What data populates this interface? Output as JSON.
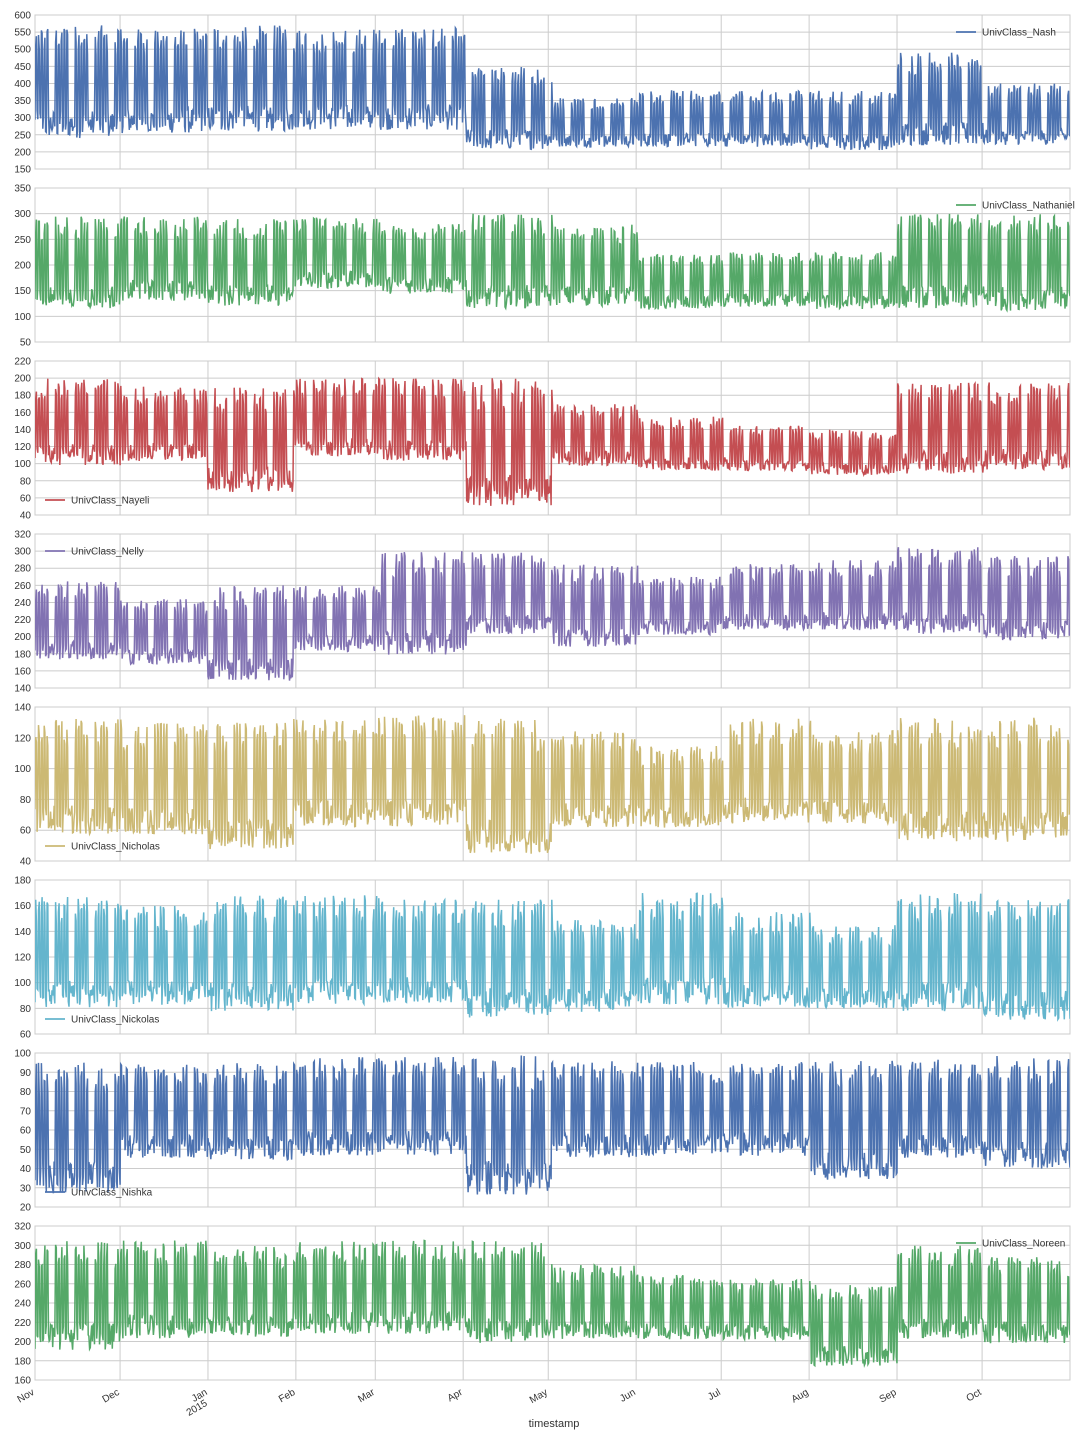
{
  "figure": {
    "background": "#ffffff",
    "grid_color": "#cccccc",
    "axes_edge_color": "#cccccc"
  },
  "chart_data": {
    "type": "line",
    "xlabel": "timestamp",
    "x_range": [
      "2014-11-01",
      "2015-10-31"
    ],
    "x_ticks": [
      {
        "date": "2014-11-01",
        "label": "Nov",
        "sublabel": ""
      },
      {
        "date": "2014-12-01",
        "label": "Dec",
        "sublabel": ""
      },
      {
        "date": "2015-01-01",
        "label": "Jan",
        "sublabel": "2015"
      },
      {
        "date": "2015-02-01",
        "label": "Feb",
        "sublabel": ""
      },
      {
        "date": "2015-03-01",
        "label": "Mar",
        "sublabel": ""
      },
      {
        "date": "2015-04-01",
        "label": "Apr",
        "sublabel": ""
      },
      {
        "date": "2015-05-01",
        "label": "May",
        "sublabel": ""
      },
      {
        "date": "2015-06-01",
        "label": "Jun",
        "sublabel": ""
      },
      {
        "date": "2015-07-01",
        "label": "Jul",
        "sublabel": ""
      },
      {
        "date": "2015-08-01",
        "label": "Aug",
        "sublabel": ""
      },
      {
        "date": "2015-09-01",
        "label": "Sep",
        "sublabel": ""
      },
      {
        "date": "2015-10-01",
        "label": "Oct",
        "sublabel": ""
      }
    ],
    "grid": true,
    "sharex": true,
    "panels": [
      {
        "name": "UnivClass_Nash",
        "color": "#4c72b0",
        "ylim": [
          150,
          600
        ],
        "yticks": [
          150,
          200,
          250,
          300,
          350,
          400,
          450,
          500,
          550,
          600
        ],
        "legend_loc": "upper right",
        "monthly_low": [
          230,
          245,
          250,
          255,
          255,
          200,
          210,
          210,
          210,
          200,
          210,
          215
        ],
        "monthly_high": [
          570,
          560,
          570,
          560,
          565,
          450,
          360,
          380,
          380,
          380,
          495,
          400
        ]
      },
      {
        "name": "UnivClass_Nathaniel",
        "color": "#55a868",
        "ylim": [
          50,
          350
        ],
        "yticks": [
          50,
          100,
          150,
          200,
          250,
          300,
          350
        ],
        "legend_loc": "upper right",
        "monthly_low": [
          110,
          125,
          115,
          150,
          140,
          110,
          115,
          110,
          115,
          110,
          110,
          105
        ],
        "monthly_high": [
          295,
          295,
          290,
          295,
          280,
          300,
          280,
          220,
          225,
          225,
          300,
          300
        ]
      },
      {
        "name": "UnivClass_Nayeli",
        "color": "#c44e52",
        "ylim": [
          40,
          220
        ],
        "yticks": [
          40,
          60,
          80,
          100,
          120,
          140,
          160,
          180,
          200,
          220
        ],
        "legend_loc": "lower left",
        "monthly_low": [
          95,
          100,
          62,
          105,
          100,
          45,
          95,
          90,
          90,
          85,
          85,
          90
        ],
        "monthly_high": [
          200,
          190,
          190,
          200,
          200,
          200,
          170,
          155,
          145,
          140,
          195,
          195
        ]
      },
      {
        "name": "UnivClass_Nelly",
        "color": "#8172b2",
        "ylim": [
          140,
          320
        ],
        "yticks": [
          140,
          160,
          180,
          200,
          220,
          240,
          260,
          280,
          300,
          320
        ],
        "legend_loc": "upper left",
        "monthly_low": [
          170,
          165,
          145,
          180,
          175,
          200,
          185,
          200,
          205,
          205,
          200,
          190
        ],
        "monthly_high": [
          265,
          245,
          260,
          260,
          300,
          300,
          285,
          270,
          285,
          290,
          305,
          295
        ]
      },
      {
        "name": "UnivClass_Nicholas",
        "color": "#ccb974",
        "ylim": [
          40,
          140
        ],
        "yticks": [
          40,
          60,
          80,
          100,
          120,
          140
        ],
        "legend_loc": "lower left",
        "monthly_low": [
          55,
          55,
          45,
          60,
          60,
          42,
          60,
          60,
          62,
          62,
          50,
          50
        ],
        "monthly_high": [
          133,
          130,
          130,
          133,
          135,
          133,
          125,
          115,
          133,
          125,
          133,
          133
        ]
      },
      {
        "name": "UnivClass_Nickolas",
        "color": "#64b5cd",
        "ylim": [
          60,
          180
        ],
        "yticks": [
          60,
          80,
          100,
          120,
          140,
          160,
          180
        ],
        "legend_loc": "lower left",
        "monthly_low": [
          78,
          80,
          75,
          80,
          82,
          70,
          75,
          80,
          78,
          78,
          75,
          68
        ],
        "monthly_high": [
          168,
          160,
          168,
          168,
          165,
          165,
          150,
          170,
          155,
          145,
          170,
          165
        ]
      },
      {
        "name": "UnivClass_Nishka",
        "color": "#4c72b0",
        "ylim": [
          20,
          100
        ],
        "yticks": [
          20,
          30,
          40,
          50,
          60,
          70,
          80,
          90,
          100
        ],
        "legend_loc": "lower left",
        "monthly_low": [
          25,
          44,
          43,
          45,
          45,
          24,
          44,
          45,
          45,
          32,
          44,
          38
        ],
        "monthly_high": [
          95,
          94,
          95,
          98,
          99,
          99,
          96,
          96,
          96,
          96,
          98,
          99
        ]
      },
      {
        "name": "UnivClass_Noreen",
        "color": "#55a868",
        "ylim": [
          160,
          320
        ],
        "yticks": [
          160,
          180,
          200,
          220,
          240,
          260,
          280,
          300,
          320
        ],
        "legend_loc": "upper right",
        "monthly_low": [
          188,
          200,
          200,
          205,
          205,
          195,
          200,
          200,
          200,
          172,
          200,
          195
        ],
        "monthly_high": [
          305,
          305,
          300,
          305,
          305,
          305,
          280,
          270,
          265,
          260,
          300,
          290
        ]
      }
    ]
  }
}
